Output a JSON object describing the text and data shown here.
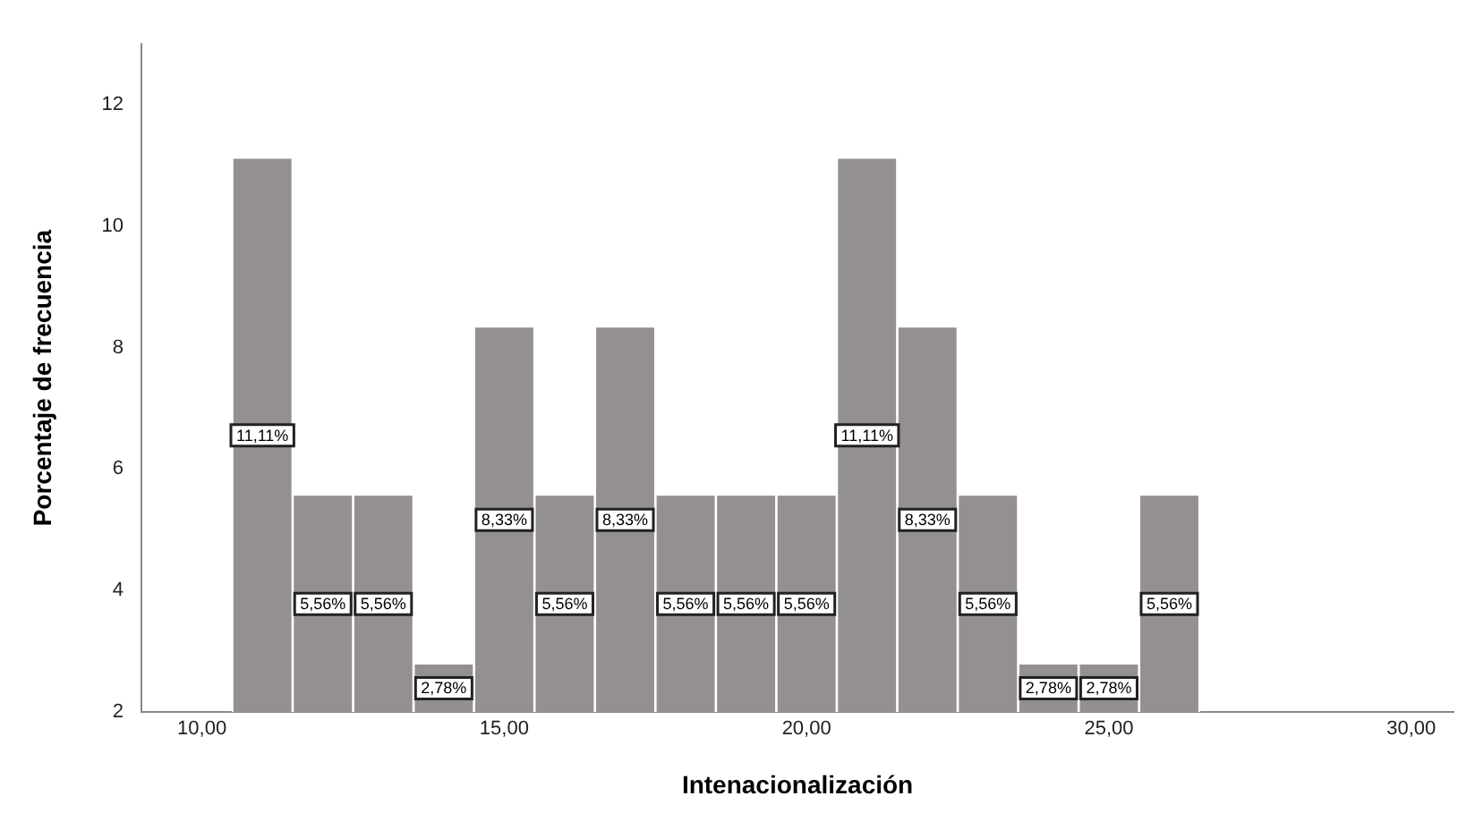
{
  "chart_data": {
    "type": "histogram",
    "xlabel": "Intenacionalización",
    "ylabel": "Porcentaje de frecuencia",
    "bins": [
      10.5,
      11.5,
      12.5,
      13.5,
      14.5,
      15.5,
      16.5,
      17.5,
      18.5,
      19.5,
      20.5,
      21.5,
      22.5,
      23.5,
      24.5,
      25.5,
      26.5
    ],
    "values": [
      11.11,
      5.56,
      5.56,
      2.78,
      8.33,
      5.56,
      8.33,
      5.56,
      5.56,
      5.56,
      11.11,
      8.33,
      5.56,
      2.78,
      2.78,
      5.56
    ],
    "value_labels": [
      "11,11%",
      "5,56%",
      "5,56%",
      "2,78%",
      "8,33%",
      "5,56%",
      "8,33%",
      "5,56%",
      "5,56%",
      "5,56%",
      "11,11%",
      "8,33%",
      "5,56%",
      "2,78%",
      "2,78%",
      "5,56%"
    ],
    "color": "#949090",
    "xlim": [
      9,
      30.7
    ],
    "ylim": [
      2,
      13
    ],
    "xticks": [
      {
        "value": 10,
        "label": "10,00"
      },
      {
        "value": 15,
        "label": "15,00"
      },
      {
        "value": 20,
        "label": "20,00"
      },
      {
        "value": 25,
        "label": "25,00"
      },
      {
        "value": 30,
        "label": "30,00"
      }
    ],
    "yticks": [
      2,
      4,
      6,
      8,
      10,
      12
    ],
    "grid": false,
    "legend": false
  }
}
